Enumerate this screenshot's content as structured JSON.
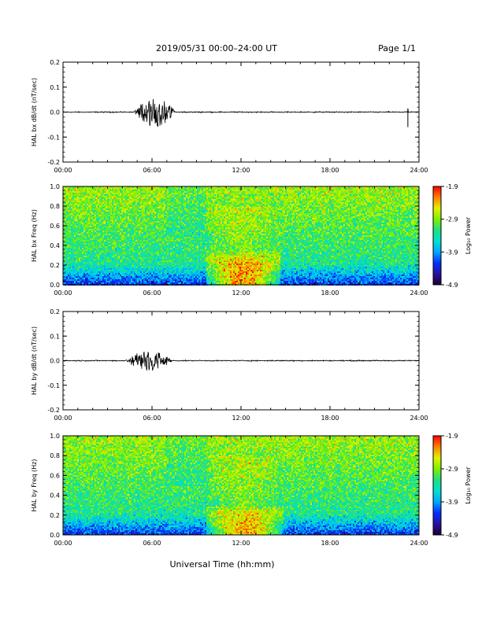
{
  "header": {
    "title": "2019/05/31  00:00–24:00 UT",
    "page": "Page 1/1"
  },
  "xlabel": "Universal Time (hh:mm)",
  "colors": {
    "trace": "#000000",
    "colormap": [
      "#1a0030",
      "#2a10a0",
      "#0030ff",
      "#00a8ff",
      "#00e0d0",
      "#20e080",
      "#80f000",
      "#e0f000",
      "#ff8000",
      "#ff0000"
    ]
  },
  "chart_data": [
    {
      "type": "line",
      "ylabel": "HAL bx dB/dt (nT/sec)",
      "xlim": [
        0,
        24
      ],
      "xticks": [
        "00:00",
        "06:00",
        "12:00",
        "18:00",
        "24:00"
      ],
      "ylim": [
        -0.2,
        0.2
      ],
      "yticks": [
        "0.2",
        "0.1",
        "0.0",
        "-0.1",
        "-0.2"
      ],
      "baseline": 0.0,
      "activity": [
        {
          "t_start": 4.8,
          "t_end": 7.6,
          "max_amplitude": 0.06
        },
        {
          "t_start": 23.25,
          "t_end": 23.3,
          "max_amplitude": -0.06
        }
      ]
    },
    {
      "type": "heatmap",
      "ylabel": "HAL bx Freq (Hz)",
      "xlim": [
        0,
        24
      ],
      "xticks": [
        "00:00",
        "06:00",
        "12:00",
        "18:00",
        "24:00"
      ],
      "ylim": [
        0.0,
        1.0
      ],
      "yticks": [
        "1.0",
        "0.8",
        "0.6",
        "0.4",
        "0.2",
        "0.0"
      ],
      "colorbar": {
        "label": "Log₁₀ Power",
        "ticks": [
          "-1.9",
          "-2.9",
          "-3.9",
          "-4.9"
        ],
        "range": [
          -4.9,
          -1.9
        ]
      },
      "enhancements": [
        {
          "t_start": 9.6,
          "t_end": 14.6,
          "f_max": 0.35,
          "peak_log_power": -2.0
        }
      ]
    },
    {
      "type": "line",
      "ylabel": "HAL by dB/dt (nT/sec)",
      "xlim": [
        0,
        24
      ],
      "xticks": [
        "00:00",
        "06:00",
        "12:00",
        "18:00",
        "24:00"
      ],
      "ylim": [
        -0.2,
        0.2
      ],
      "yticks": [
        "0.2",
        "0.1",
        "0.0",
        "-0.1",
        "-0.2"
      ],
      "baseline": 0.0,
      "activity": [
        {
          "t_start": 4.2,
          "t_end": 7.4,
          "max_amplitude": 0.04
        }
      ]
    },
    {
      "type": "heatmap",
      "ylabel": "HAL by Freq (Hz)",
      "xlim": [
        0,
        24
      ],
      "xticks": [
        "00:00",
        "06:00",
        "12:00",
        "18:00",
        "24:00"
      ],
      "ylim": [
        0.0,
        1.0
      ],
      "yticks": [
        "1.0",
        "0.8",
        "0.6",
        "0.4",
        "0.2",
        "0.0"
      ],
      "colorbar": {
        "label": "Log₁₀ Power",
        "ticks": [
          "-1.9",
          "-2.9",
          "-3.9",
          "-4.9"
        ],
        "range": [
          -4.9,
          -1.9
        ]
      },
      "enhancements": [
        {
          "t_start": 9.6,
          "t_end": 14.8,
          "f_max": 0.3,
          "peak_log_power": -2.2
        }
      ]
    }
  ]
}
